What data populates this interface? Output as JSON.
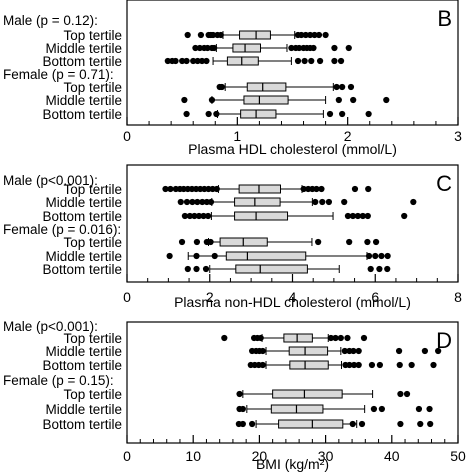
{
  "chart_data": [
    {
      "type": "boxplot",
      "panel_letter": "B",
      "xlabel": "Plasma HDL cholesterol (mmol/L)",
      "xlim": [
        0,
        3
      ],
      "major_ticks": [
        0,
        1,
        2,
        3
      ],
      "minor_step": 0.2,
      "groups": [
        {
          "title": "Male (p = 0.12):",
          "rows": [
            {
              "label": "Top tertile",
              "whislo": 0.87,
              "q1": 1.02,
              "median": 1.17,
              "q3": 1.3,
              "whishi": 1.52,
              "outliers": [
                0.55,
                0.67,
                0.74,
                0.76,
                0.78,
                0.82,
                0.85,
                1.55,
                1.58,
                1.62,
                1.66,
                1.7,
                1.74,
                1.8
              ]
            },
            {
              "label": "Middle tertile",
              "whislo": 0.81,
              "q1": 0.96,
              "median": 1.07,
              "q3": 1.21,
              "whishi": 1.45,
              "outliers": [
                0.62,
                0.66,
                0.7,
                0.73,
                0.77,
                0.79,
                1.49,
                1.53,
                1.56,
                1.6,
                1.63,
                1.66,
                1.69,
                1.88,
                2.01
              ]
            },
            {
              "label": "Bottom tertile",
              "whislo": 0.78,
              "q1": 0.91,
              "median": 1.04,
              "q3": 1.19,
              "whishi": 1.49,
              "outliers": [
                0.37,
                0.41,
                0.44,
                0.5,
                0.54,
                0.6,
                0.64,
                0.68,
                0.72,
                1.55,
                1.61,
                1.67,
                1.75,
                1.88,
                1.94
              ]
            }
          ]
        },
        {
          "title": "Female (p = 0.71):",
          "rows": [
            {
              "label": "Top tertile",
              "whislo": 0.89,
              "q1": 1.09,
              "median": 1.23,
              "q3": 1.44,
              "whishi": 1.87,
              "outliers": [
                0.84,
                0.86,
                1.9,
                1.95,
                2.03
              ]
            },
            {
              "label": "Middle tertile",
              "whislo": 0.77,
              "q1": 1.06,
              "median": 1.2,
              "q3": 1.46,
              "whishi": 1.8,
              "outliers": [
                0.52,
                0.77,
                1.92,
                2.05,
                2.35
              ]
            },
            {
              "label": "Bottom tertile",
              "whislo": 0.82,
              "q1": 1.03,
              "median": 1.17,
              "q3": 1.35,
              "whishi": 1.78,
              "outliers": [
                0.54,
                0.74,
                0.81,
                1.84,
                1.95,
                2.19
              ]
            }
          ]
        }
      ]
    },
    {
      "type": "boxplot",
      "panel_letter": "C",
      "xlabel": "Plasma non-HDL cholesterol (mmol/L)",
      "xlim": [
        0,
        8
      ],
      "major_ticks": [
        0,
        2,
        4,
        6,
        8
      ],
      "minor_step": 0.5,
      "groups": [
        {
          "title": "Male (p<0.001):",
          "rows": [
            {
              "label": "Top tertile",
              "whislo": 2.21,
              "q1": 2.71,
              "median": 3.19,
              "q3": 3.71,
              "whishi": 4.23,
              "outliers": [
                0.93,
                1.05,
                1.18,
                1.28,
                1.37,
                1.47,
                1.57,
                1.67,
                1.77,
                1.87,
                1.97,
                2.07,
                2.17,
                4.27,
                4.38,
                4.48,
                4.58,
                4.7,
                5.51,
                5.83
              ]
            },
            {
              "label": "Middle tertile",
              "whislo": 2.05,
              "q1": 2.6,
              "median": 3.09,
              "q3": 3.7,
              "whishi": 4.48,
              "outliers": [
                1.3,
                1.45,
                1.58,
                1.7,
                1.82,
                1.93,
                2.03,
                4.55,
                4.72,
                4.88,
                5.25,
                6.92
              ]
            },
            {
              "label": "Bottom tertile",
              "whislo": 2.04,
              "q1": 2.6,
              "median": 3.12,
              "q3": 3.88,
              "whishi": 4.98,
              "outliers": [
                1.4,
                1.52,
                1.63,
                1.74,
                1.85,
                1.96,
                5.34,
                5.46,
                5.58,
                5.7,
                5.82,
                6.7
              ]
            }
          ]
        },
        {
          "title": "Female (p = 0.016):",
          "rows": [
            {
              "label": "Top tertile",
              "whislo": 1.97,
              "q1": 2.25,
              "median": 2.81,
              "q3": 3.39,
              "whishi": 4.47,
              "outliers": [
                1.33,
                1.69,
                1.93,
                2.02,
                4.62,
                5.37,
                5.81,
                6.02
              ]
            },
            {
              "label": "Middle tertile",
              "whislo": 1.48,
              "q1": 2.4,
              "median": 2.91,
              "q3": 4.32,
              "whishi": 5.8,
              "outliers": [
                1.03,
                1.68,
                2.12,
                5.85,
                6.0,
                6.15,
                6.3
              ]
            },
            {
              "label": "Bottom tertile",
              "whislo": 2.0,
              "q1": 2.63,
              "median": 3.22,
              "q3": 4.36,
              "whishi": 5.13,
              "outliers": [
                1.47,
                1.68,
                1.91,
                5.89,
                6.1,
                6.29
              ]
            }
          ]
        }
      ]
    },
    {
      "type": "boxplot",
      "panel_letter": "D",
      "xlabel": "BMI (kg/m²)",
      "xlim": [
        0,
        50
      ],
      "major_ticks": [
        0,
        10,
        20,
        30,
        40,
        50
      ],
      "minor_step": 2,
      "groups": [
        {
          "title": "Male (p<0.001):",
          "rows": [
            {
              "label": "Top tertile",
              "whislo": 20.4,
              "q1": 23.7,
              "median": 25.7,
              "q3": 28.0,
              "whishi": 30.4,
              "outliers": [
                14.7,
                19.2,
                19.7,
                20.2,
                30.8,
                31.5,
                32.3,
                33.3,
                35.8
              ]
            },
            {
              "label": "Middle tertile",
              "whislo": 21.0,
              "q1": 24.5,
              "median": 26.9,
              "q3": 30.3,
              "whishi": 32.3,
              "outliers": [
                18.9,
                19.5,
                20.0,
                20.5,
                32.9,
                33.6,
                34.2,
                35.0,
                41.1,
                45.0,
                47.0
              ]
            },
            {
              "label": "Bottom tertile",
              "whislo": 21.0,
              "q1": 24.6,
              "median": 26.9,
              "q3": 30.4,
              "whishi": 32.4,
              "outliers": [
                18.7,
                19.3,
                19.9,
                20.5,
                33.0,
                33.6,
                34.3,
                35.0,
                37.0,
                38.2,
                41.2,
                43.0,
                46.3
              ]
            }
          ]
        },
        {
          "title": "Female (p = 0.15):",
          "rows": [
            {
              "label": "Top tertile",
              "whislo": 17.5,
              "q1": 22.0,
              "median": 26.8,
              "q3": 32.5,
              "whishi": 37.1,
              "outliers": [
                17.0,
                41.3,
                42.3
              ]
            },
            {
              "label": "Middle tertile",
              "whislo": 18.1,
              "q1": 21.8,
              "median": 25.6,
              "q3": 29.6,
              "whishi": 35.9,
              "outliers": [
                17.0,
                17.5,
                37.3,
                38.5,
                44.1,
                45.7
              ]
            },
            {
              "label": "Bottom tertile",
              "whislo": 19.5,
              "q1": 22.9,
              "median": 28.0,
              "q3": 32.6,
              "whishi": 34.7,
              "outliers": [
                16.9,
                17.5,
                18.9,
                34.1,
                35.5,
                41.3,
                44.3,
                45.8
              ]
            }
          ]
        }
      ]
    }
  ]
}
